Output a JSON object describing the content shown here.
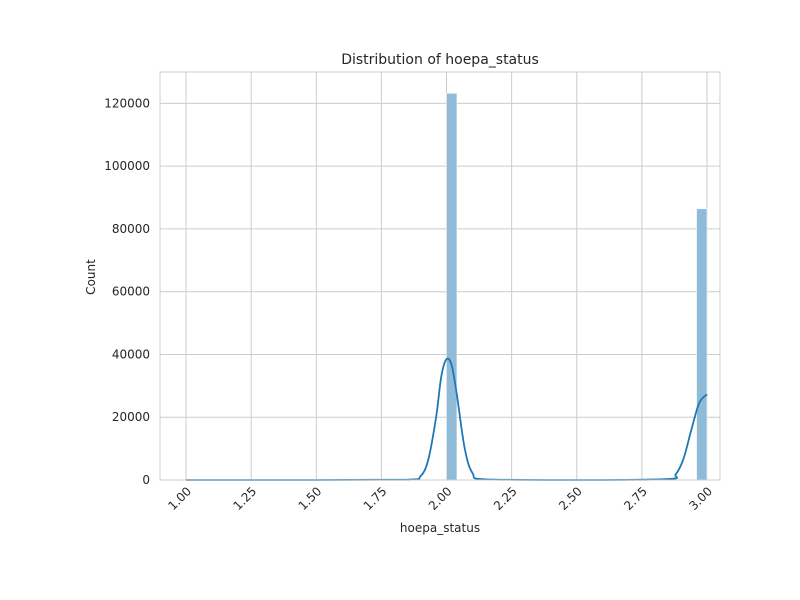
{
  "chart_data": {
    "type": "bar",
    "title": "Distribution of hoepa_status",
    "xlabel": "hoepa_status",
    "ylabel": "Count",
    "xlim": [
      0.9,
      3.05
    ],
    "ylim": [
      0,
      130000
    ],
    "grid": true,
    "x_ticks": [
      "1.00",
      "1.25",
      "1.50",
      "1.75",
      "2.00",
      "2.25",
      "2.50",
      "2.75",
      "3.00"
    ],
    "y_ticks": [
      "0",
      "20000",
      "40000",
      "60000",
      "80000",
      "100000",
      "120000"
    ],
    "histogram": {
      "bin_width": 0.04,
      "bins": [
        {
          "x0": 1.96,
          "x1": 2.0,
          "count": 0
        },
        {
          "x0": 2.0,
          "x1": 2.04,
          "count": 123200
        },
        {
          "x0": 2.96,
          "x1": 3.0,
          "count": 86400
        }
      ],
      "color": "#8fbbd9"
    },
    "kde": {
      "color": "#1f77b4",
      "x": [
        1.0,
        1.5,
        1.85,
        1.9,
        1.93,
        1.96,
        1.98,
        2.0,
        2.02,
        2.04,
        2.07,
        2.1,
        2.15,
        2.5,
        2.85,
        2.88,
        2.91,
        2.94,
        2.97,
        3.0
      ],
      "y": [
        0,
        0,
        100,
        1200,
        6500,
        20000,
        33000,
        38500,
        36500,
        27000,
        10000,
        2200,
        200,
        0,
        300,
        1800,
        6800,
        16000,
        24500,
        27300
      ]
    }
  }
}
